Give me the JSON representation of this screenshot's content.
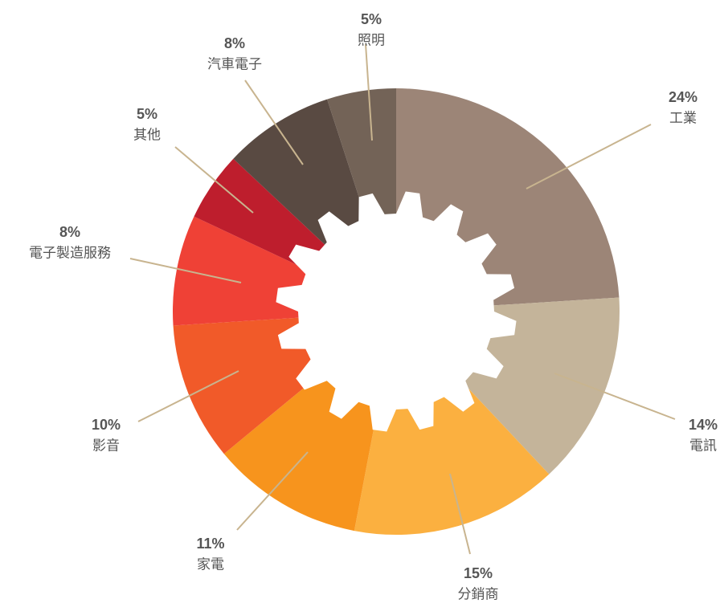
{
  "chart_data": {
    "type": "pie",
    "categories": [
      "工業",
      "電訊",
      "分銷商",
      "家電",
      "影音",
      "電子製造服務",
      "其他",
      "汽車電子",
      "照明"
    ],
    "values": [
      24,
      14,
      15,
      11,
      10,
      8,
      5,
      8,
      5
    ],
    "value_labels": [
      "24%",
      "14%",
      "15%",
      "11%",
      "10%",
      "8%",
      "5%",
      "8%",
      "5%"
    ],
    "colors": [
      "#9c8577",
      "#c4b49a",
      "#fbb040",
      "#f7941d",
      "#f15a29",
      "#ef4136",
      "#be1e2d",
      "#594a42",
      "#736357"
    ]
  }
}
